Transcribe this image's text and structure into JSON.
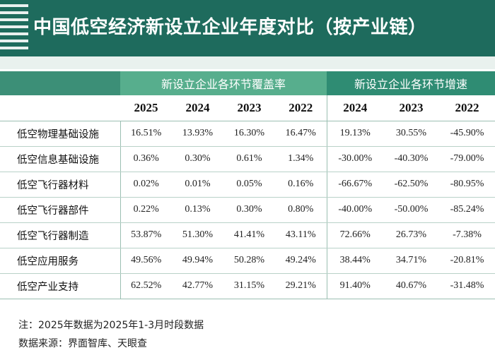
{
  "title": "中国低空经济新设立企业年度对比（按产业链）",
  "table": {
    "coverage_header": "新设立企业各环节覆盖率",
    "growth_header": "新设立企业各环节增速",
    "coverage_years": [
      "2025",
      "2024",
      "2023",
      "2022"
    ],
    "growth_years": [
      "2024",
      "2023",
      "2022"
    ],
    "rows": [
      {
        "name": "低空物理基础设施",
        "coverage": [
          "16.51%",
          "13.93%",
          "16.30%",
          "16.47%"
        ],
        "growth": [
          "19.13%",
          "30.55%",
          "-45.90%"
        ]
      },
      {
        "name": "低空信息基础设施",
        "coverage": [
          "0.36%",
          "0.30%",
          "0.61%",
          "1.34%"
        ],
        "growth": [
          "-30.00%",
          "-40.30%",
          "-79.00%"
        ]
      },
      {
        "name": "低空飞行器材料",
        "coverage": [
          "0.02%",
          "0.01%",
          "0.05%",
          "0.16%"
        ],
        "growth": [
          "-66.67%",
          "-62.50%",
          "-80.95%"
        ]
      },
      {
        "name": "低空飞行器部件",
        "coverage": [
          "0.22%",
          "0.13%",
          "0.30%",
          "0.80%"
        ],
        "growth": [
          "-40.00%",
          "-50.00%",
          "-85.24%"
        ]
      },
      {
        "name": "低空飞行器制造",
        "coverage": [
          "53.87%",
          "51.30%",
          "41.41%",
          "43.11%"
        ],
        "growth": [
          "72.66%",
          "26.73%",
          "-7.38%"
        ]
      },
      {
        "name": "低空应用服务",
        "coverage": [
          "49.56%",
          "49.94%",
          "50.28%",
          "49.24%"
        ],
        "growth": [
          "38.44%",
          "34.71%",
          "-20.81%"
        ]
      },
      {
        "name": "低空产业支持",
        "coverage": [
          "62.52%",
          "42.77%",
          "31.15%",
          "29.21%"
        ],
        "growth": [
          "91.40%",
          "40.67%",
          "-31.48%"
        ]
      }
    ]
  },
  "footer": {
    "note": "注：2025年数据为2025年1-3月时段数据",
    "source": "数据来源：界面智库、天眼查"
  },
  "colors": {
    "title_bg": "#1e6b5d",
    "coverage_header_bg": "#57ae8d",
    "growth_header_bg": "#2f8c73",
    "band_bg": "#e9f1ee"
  }
}
